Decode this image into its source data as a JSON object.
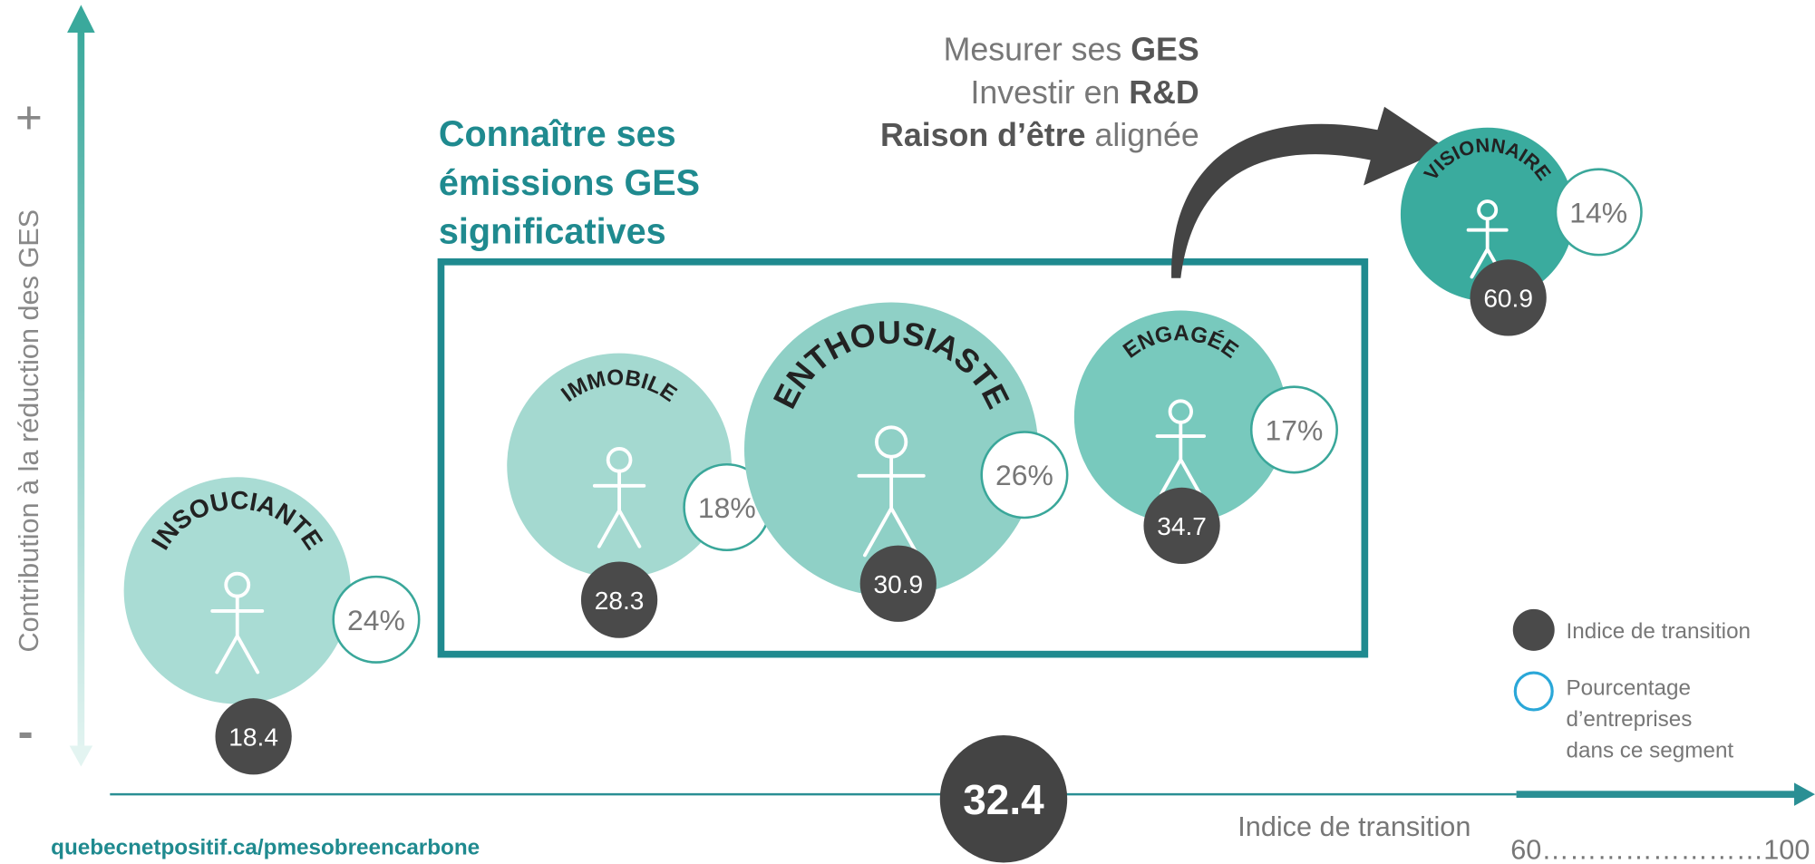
{
  "y_axis": {
    "label": "Contribution à la réduction des GES",
    "plus": "+",
    "minus": "-"
  },
  "heading": [
    "Connaître ses",
    "émissions GES",
    "significatives"
  ],
  "actions": [
    [
      {
        "text": "Mesurer ses "
      },
      {
        "text": "GES",
        "bold": true
      }
    ],
    [
      {
        "text": "Investir en "
      },
      {
        "text": "R&D",
        "bold": true
      }
    ],
    [
      {
        "text": "Raison d’être",
        "bold": true
      },
      {
        "text": " alignée"
      }
    ]
  ],
  "segments": [
    {
      "name": "INSOUCIANTE",
      "percent": "24%",
      "index": 18.4
    },
    {
      "name": "IMMOBILE",
      "percent": "18%",
      "index": 28.3
    },
    {
      "name": "ENTHOUSIASTE",
      "percent": "26%",
      "index": 30.9
    },
    {
      "name": "ENGAGÉE",
      "percent": "17%",
      "index": 34.7
    },
    {
      "name": "VISIONNAIRE",
      "percent": "14%",
      "index": 60.9
    }
  ],
  "average": 32.4,
  "x_axis": {
    "label": "Indice de transition",
    "scale": "60……………………100"
  },
  "legend": [
    {
      "label": [
        "Indice de transition"
      ]
    },
    {
      "label": [
        "Pourcentage",
        "d’entreprises",
        "dans ce segment"
      ]
    }
  ],
  "footer": "quebecnetpositif.ca/pmesobreencarbone"
}
